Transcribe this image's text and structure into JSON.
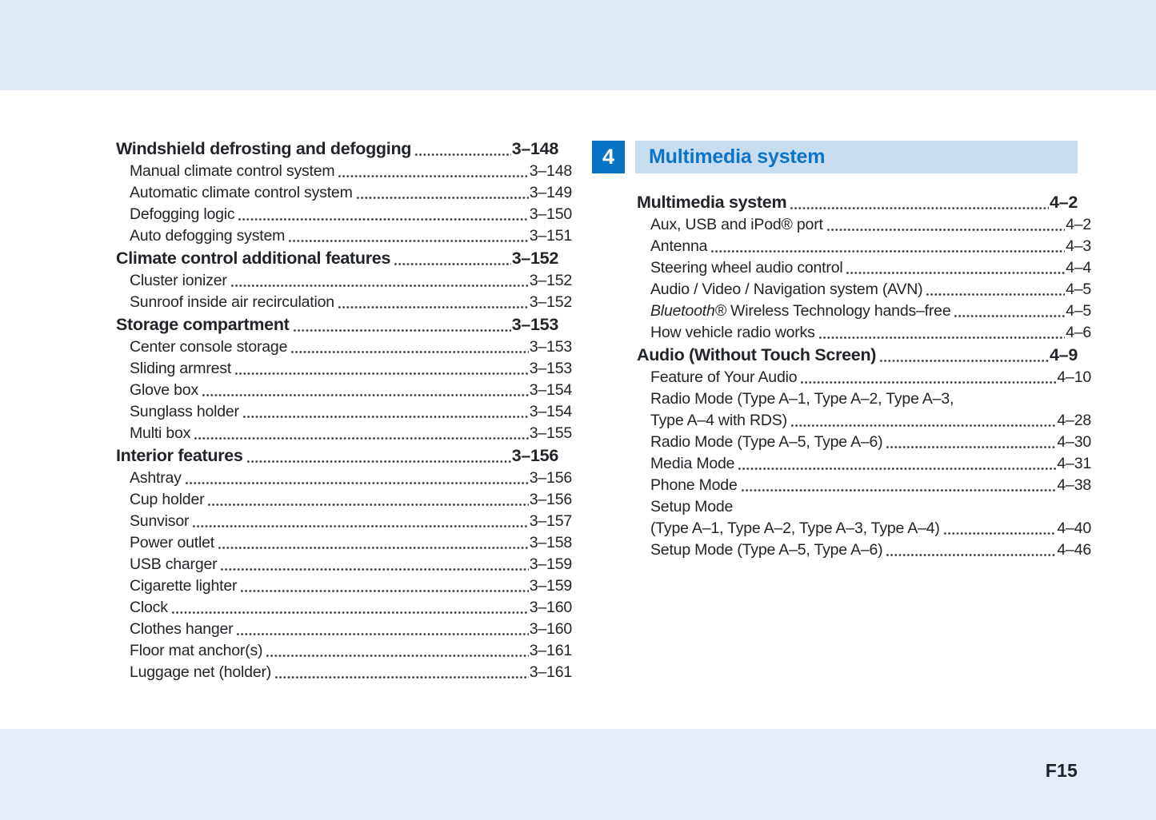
{
  "page": {
    "footer_page_number": "F15"
  },
  "colors": {
    "band_top": "#dee9f6",
    "band_bottom": "#e4edf8",
    "chapter_blue": "#0b73c6",
    "banner_bg": "#c9ddf1",
    "banner_text": "#0c74c6",
    "text": "#212428"
  },
  "left_column": {
    "entries": [
      {
        "level": "heading",
        "label": "Windshield defrosting and defogging",
        "page": "3–148"
      },
      {
        "level": "sub",
        "label": "Manual climate control system",
        "page": "3–148"
      },
      {
        "level": "sub",
        "label": "Automatic climate control system",
        "page": "3–149"
      },
      {
        "level": "sub",
        "label": "Defogging logic",
        "page": "3–150"
      },
      {
        "level": "sub",
        "label": "Auto defogging system",
        "page": "3–151"
      },
      {
        "level": "heading",
        "label": "Climate control additional features",
        "page": "3–152"
      },
      {
        "level": "sub",
        "label": "Cluster ionizer",
        "page": "3–152"
      },
      {
        "level": "sub",
        "label": "Sunroof inside air recirculation",
        "page": "3–152"
      },
      {
        "level": "heading",
        "label": "Storage compartment",
        "page": "3–153"
      },
      {
        "level": "sub",
        "label": "Center console storage",
        "page": "3–153"
      },
      {
        "level": "sub",
        "label": "Sliding armrest",
        "page": "3–153"
      },
      {
        "level": "sub",
        "label": "Glove box",
        "page": "3–154"
      },
      {
        "level": "sub",
        "label": "Sunglass holder",
        "page": "3–154"
      },
      {
        "level": "sub",
        "label": "Multi box",
        "page": "3–155"
      },
      {
        "level": "heading",
        "label": "Interior features",
        "page": "3–156"
      },
      {
        "level": "sub",
        "label": "Ashtray",
        "page": "3–156"
      },
      {
        "level": "sub",
        "label": "Cup holder",
        "page": "3–156"
      },
      {
        "level": "sub",
        "label": "Sunvisor",
        "page": "3–157"
      },
      {
        "level": "sub",
        "label": "Power outlet",
        "page": "3–158"
      },
      {
        "level": "sub",
        "label": "USB charger",
        "page": "3–159"
      },
      {
        "level": "sub",
        "label": "Cigarette lighter",
        "page": "3–159"
      },
      {
        "level": "sub",
        "label": "Clock",
        "page": "3–160"
      },
      {
        "level": "sub",
        "label": "Clothes hanger",
        "page": "3–160"
      },
      {
        "level": "sub",
        "label": "Floor mat anchor(s)",
        "page": "3–161"
      },
      {
        "level": "sub",
        "label": "Luggage net (holder)",
        "page": "3–161"
      }
    ]
  },
  "right_column": {
    "chapter_number": "4",
    "chapter_title": "Multimedia system",
    "entries": [
      {
        "level": "heading",
        "label": "Multimedia system",
        "page": "4–2"
      },
      {
        "level": "sub",
        "label": "Aux, USB and iPod® port",
        "page": "4–2"
      },
      {
        "level": "sub",
        "label": "Antenna",
        "page": "4–3"
      },
      {
        "level": "sub",
        "label": "Steering wheel audio control",
        "page": "4–4"
      },
      {
        "level": "sub",
        "label": "Audio / Video / Navigation system (AVN)",
        "page": "4–5"
      },
      {
        "level": "sub",
        "parts": [
          {
            "text": "Bluetooth®",
            "italic": true
          },
          {
            "text": " Wireless Technology hands–free ",
            "italic": false
          }
        ],
        "page": "4–5"
      },
      {
        "level": "sub",
        "label": "How vehicle radio works",
        "page": "4–6"
      },
      {
        "level": "heading",
        "label": "Audio (Without Touch Screen)",
        "page": "4–9"
      },
      {
        "level": "sub",
        "label": "Feature of Your Audio",
        "page": "4–10"
      },
      {
        "level": "sub",
        "lines": [
          "Radio Mode (Type A–1, Type A–2, Type A–3,",
          "Type A–4 with RDS)"
        ],
        "page": "4–28"
      },
      {
        "level": "sub",
        "label": "Radio Mode (Type A–5, Type A–6)",
        "page": "4–30"
      },
      {
        "level": "sub",
        "label": "Media Mode",
        "page": "4–31"
      },
      {
        "level": "sub",
        "label": "Phone Mode",
        "page": "4–38"
      },
      {
        "level": "sub",
        "lines": [
          "Setup Mode",
          "(Type A–1, Type A–2, Type A–3, Type A–4)"
        ],
        "page": "4–40"
      },
      {
        "level": "sub",
        "label": "Setup Mode (Type A–5, Type A–6)",
        "page": "4–46"
      }
    ]
  }
}
